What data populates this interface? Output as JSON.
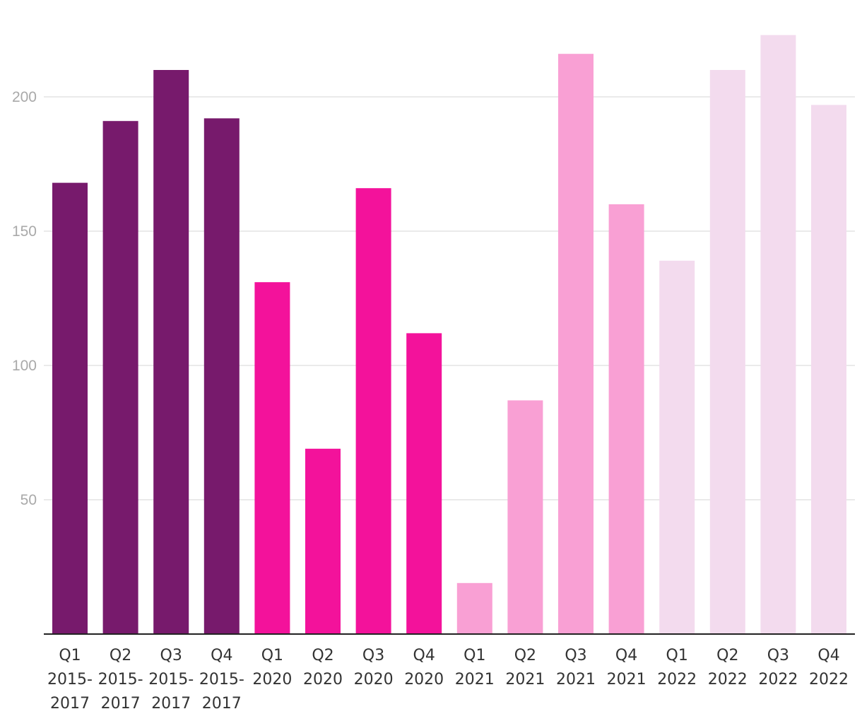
{
  "chart_data": {
    "type": "bar",
    "title": "",
    "xlabel": "",
    "ylabel": "",
    "ylim": [
      0,
      222
    ],
    "yticks": [
      50,
      100,
      150,
      200
    ],
    "grid": true,
    "legend": "none",
    "categories": [
      [
        "Q1",
        "2015-",
        "2017"
      ],
      [
        "Q2",
        "2015-",
        "2017"
      ],
      [
        "Q3",
        "2015-",
        "2017"
      ],
      [
        "Q4",
        "2015-",
        "2017"
      ],
      [
        "Q1",
        "2020"
      ],
      [
        "Q2",
        "2020"
      ],
      [
        "Q3",
        "2020"
      ],
      [
        "Q4",
        "2020"
      ],
      [
        "Q1",
        "2021"
      ],
      [
        "Q2",
        "2021"
      ],
      [
        "Q3",
        "2021"
      ],
      [
        "Q4",
        "2021"
      ],
      [
        "Q1",
        "2022"
      ],
      [
        "Q2",
        "2022"
      ],
      [
        "Q3",
        "2022"
      ],
      [
        "Q4",
        "2022"
      ]
    ],
    "values": [
      168,
      191,
      210,
      192,
      131,
      69,
      166,
      112,
      19,
      87,
      216,
      160,
      139,
      210,
      223,
      197
    ],
    "groups": [
      {
        "name": "2015-2017",
        "color": "#771a6c",
        "indices": [
          0,
          1,
          2,
          3
        ]
      },
      {
        "name": "2020",
        "color": "#f3129b",
        "indices": [
          4,
          5,
          6,
          7
        ]
      },
      {
        "name": "2021",
        "color": "#f9a0d4",
        "indices": [
          8,
          9,
          10,
          11
        ]
      },
      {
        "name": "2022",
        "color": "#f3dbee",
        "indices": [
          12,
          13,
          14,
          15
        ]
      }
    ]
  }
}
